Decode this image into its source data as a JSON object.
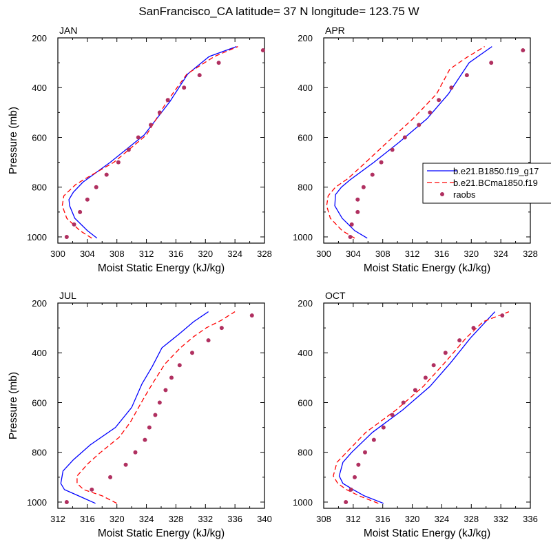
{
  "title": "SanFrancisco_CA  latitude= 37 N longitude= 123.75 W",
  "colors": {
    "model1": "#0000ff",
    "model2": "#ff0000",
    "obs": "#b03060",
    "axis": "#000000"
  },
  "legend": {
    "placement": "right edge of APR panel",
    "entries": [
      {
        "label": "b.e21.B1850.f19_g17",
        "style": "solid-line",
        "color": "#0000ff"
      },
      {
        "label": "b.e21.BCma1850.f19",
        "style": "dashed-line",
        "color": "#ff0000"
      },
      {
        "label": "raobs",
        "style": "dot",
        "color": "#b03060"
      }
    ]
  },
  "chart_data": [
    {
      "type": "line",
      "title": "JAN",
      "xlabel": "Moist Static Energy (kJ/kg)",
      "ylabel": "Pressure (mb)",
      "xlim": [
        300,
        328
      ],
      "xticks": [
        300,
        304,
        308,
        312,
        316,
        320,
        324,
        328
      ],
      "ylim": [
        1025,
        200
      ],
      "yticks": [
        200,
        400,
        600,
        800,
        1000
      ],
      "series": [
        {
          "name": "b.e21.B1850.f19_g17",
          "style": "solid",
          "points": [
            [
              305.3,
              1005
            ],
            [
              304.0,
              975
            ],
            [
              302.3,
              925
            ],
            [
              301.6,
              875
            ],
            [
              301.5,
              850
            ],
            [
              302.1,
              820
            ],
            [
              303.4,
              780
            ],
            [
              307.1,
              700
            ],
            [
              311.7,
              590
            ],
            [
              315.2,
              455
            ],
            [
              317.6,
              345
            ],
            [
              320.5,
              275
            ],
            [
              324.2,
              235
            ]
          ]
        },
        {
          "name": "b.e21.BCma1850.f19",
          "style": "dashed",
          "points": [
            [
              304.6,
              1005
            ],
            [
              303.0,
              975
            ],
            [
              301.2,
              925
            ],
            [
              300.6,
              875
            ],
            [
              300.8,
              835
            ],
            [
              302.4,
              790
            ],
            [
              303.6,
              768
            ],
            [
              307.6,
              700
            ],
            [
              312.0,
              590
            ],
            [
              314.8,
              455
            ],
            [
              317.5,
              345
            ],
            [
              321.2,
              275
            ],
            [
              324.4,
              235
            ]
          ]
        },
        {
          "name": "raobs",
          "style": "dots",
          "points": [
            [
              301.2,
              1000
            ],
            [
              302.2,
              950
            ],
            [
              303.0,
              900
            ],
            [
              304.0,
              850
            ],
            [
              305.2,
              800
            ],
            [
              306.6,
              750
            ],
            [
              308.2,
              700
            ],
            [
              309.6,
              650
            ],
            [
              310.9,
              600
            ],
            [
              312.6,
              550
            ],
            [
              313.8,
              500
            ],
            [
              314.9,
              450
            ],
            [
              317.1,
              400
            ],
            [
              319.2,
              350
            ],
            [
              321.8,
              300
            ],
            [
              327.8,
              250
            ]
          ]
        }
      ]
    },
    {
      "type": "line",
      "title": "APR",
      "xlabel": "Moist Static Energy (kJ/kg)",
      "ylabel": "",
      "xlim": [
        300,
        328
      ],
      "xticks": [
        300,
        304,
        308,
        312,
        316,
        320,
        324,
        328
      ],
      "ylim": [
        1025,
        200
      ],
      "yticks": [
        200,
        400,
        600,
        800,
        1000
      ],
      "series": [
        {
          "name": "b.e21.B1850.f19_g17",
          "style": "solid",
          "points": [
            [
              305.9,
              1005
            ],
            [
              304.2,
              975
            ],
            [
              302.5,
              925
            ],
            [
              301.5,
              875
            ],
            [
              301.6,
              830
            ],
            [
              302.4,
              800
            ],
            [
              303.6,
              770
            ],
            [
              306.8,
              700
            ],
            [
              310.2,
              620
            ],
            [
              314.0,
              525
            ],
            [
              316.9,
              425
            ],
            [
              319.7,
              300
            ],
            [
              322.8,
              235
            ]
          ]
        },
        {
          "name": "b.e21.BCma1850.f19",
          "style": "dashed",
          "points": [
            [
              304.2,
              1005
            ],
            [
              302.5,
              975
            ],
            [
              300.9,
              925
            ],
            [
              300.4,
              875
            ],
            [
              300.6,
              835
            ],
            [
              301.6,
              800
            ],
            [
              303.3,
              765
            ],
            [
              305.7,
              700
            ],
            [
              308.6,
              620
            ],
            [
              312.1,
              525
            ],
            [
              315.3,
              425
            ],
            [
              317.1,
              325
            ],
            [
              319.3,
              280
            ],
            [
              321.8,
              235
            ]
          ]
        },
        {
          "name": "raobs",
          "style": "dots",
          "points": [
            [
              303.6,
              1000
            ],
            [
              303.8,
              950
            ],
            [
              304.6,
              900
            ],
            [
              304.6,
              850
            ],
            [
              305.4,
              800
            ],
            [
              306.6,
              750
            ],
            [
              307.8,
              700
            ],
            [
              309.3,
              650
            ],
            [
              311.0,
              600
            ],
            [
              312.9,
              550
            ],
            [
              314.4,
              500
            ],
            [
              315.6,
              450
            ],
            [
              317.3,
              400
            ],
            [
              319.4,
              350
            ],
            [
              322.7,
              300
            ],
            [
              327.0,
              250
            ]
          ]
        }
      ]
    },
    {
      "type": "line",
      "title": "JUL",
      "xlabel": "Moist Static Energy (kJ/kg)",
      "ylabel": "Pressure (mb)",
      "xlim": [
        312,
        340
      ],
      "xticks": [
        312,
        316,
        320,
        324,
        328,
        332,
        336,
        340
      ],
      "ylim": [
        1025,
        200
      ],
      "yticks": [
        200,
        400,
        600,
        800,
        1000
      ],
      "series": [
        {
          "name": "b.e21.B1850.f19_g17",
          "style": "solid",
          "points": [
            [
              317.1,
              1005
            ],
            [
              314.8,
              975
            ],
            [
              312.9,
              950
            ],
            [
              312.4,
              925
            ],
            [
              312.7,
              875
            ],
            [
              314.1,
              830
            ],
            [
              316.4,
              770
            ],
            [
              319.8,
              700
            ],
            [
              322.0,
              620
            ],
            [
              323.4,
              525
            ],
            [
              324.8,
              455
            ],
            [
              326.1,
              380
            ],
            [
              328.4,
              325
            ],
            [
              330.4,
              275
            ],
            [
              332.4,
              235
            ]
          ]
        },
        {
          "name": "b.e21.BCma1850.f19",
          "style": "dashed",
          "points": [
            [
              320.0,
              1005
            ],
            [
              318.0,
              975
            ],
            [
              315.5,
              950
            ],
            [
              314.6,
              925
            ],
            [
              314.6,
              895
            ],
            [
              316.1,
              845
            ],
            [
              317.8,
              800
            ],
            [
              320.3,
              740
            ],
            [
              321.8,
              680
            ],
            [
              323.5,
              590
            ],
            [
              324.8,
              525
            ],
            [
              326.5,
              445
            ],
            [
              328.6,
              380
            ],
            [
              330.4,
              335
            ],
            [
              332.1,
              300
            ],
            [
              334.1,
              270
            ],
            [
              336.0,
              235
            ]
          ]
        },
        {
          "name": "raobs",
          "style": "dots",
          "points": [
            [
              313.2,
              1000
            ],
            [
              316.6,
              950
            ],
            [
              319.1,
              900
            ],
            [
              321.2,
              850
            ],
            [
              322.5,
              800
            ],
            [
              323.8,
              750
            ],
            [
              324.4,
              700
            ],
            [
              325.2,
              650
            ],
            [
              325.8,
              600
            ],
            [
              326.6,
              550
            ],
            [
              327.4,
              500
            ],
            [
              328.5,
              450
            ],
            [
              330.2,
              400
            ],
            [
              332.4,
              350
            ],
            [
              334.2,
              300
            ],
            [
              338.3,
              250
            ]
          ]
        }
      ]
    },
    {
      "type": "line",
      "title": "OCT",
      "xlabel": "Moist Static Energy (kJ/kg)",
      "ylabel": "",
      "xlim": [
        308,
        336
      ],
      "xticks": [
        308,
        312,
        316,
        320,
        324,
        328,
        332,
        336
      ],
      "ylim": [
        1025,
        200
      ],
      "yticks": [
        200,
        400,
        600,
        800,
        1000
      ],
      "series": [
        {
          "name": "b.e21.B1850.f19_g17",
          "style": "solid",
          "points": [
            [
              316.1,
              1005
            ],
            [
              313.5,
              975
            ],
            [
              312.0,
              950
            ],
            [
              310.6,
              925
            ],
            [
              310.1,
              895
            ],
            [
              310.6,
              840
            ],
            [
              311.8,
              800
            ],
            [
              314.6,
              720
            ],
            [
              318.7,
              630
            ],
            [
              322.4,
              535
            ],
            [
              325.2,
              440
            ],
            [
              327.9,
              340
            ],
            [
              331.2,
              235
            ]
          ]
        },
        {
          "name": "b.e21.BCma1850.f19",
          "style": "dashed",
          "points": [
            [
              315.4,
              1005
            ],
            [
              312.8,
              975
            ],
            [
              311.1,
              950
            ],
            [
              309.9,
              925
            ],
            [
              309.3,
              895
            ],
            [
              309.8,
              840
            ],
            [
              311.1,
              800
            ],
            [
              313.7,
              720
            ],
            [
              317.8,
              630
            ],
            [
              321.5,
              535
            ],
            [
              324.4,
              440
            ],
            [
              327.3,
              340
            ],
            [
              329.6,
              275
            ],
            [
              333.1,
              235
            ]
          ]
        },
        {
          "name": "raobs",
          "style": "dots",
          "points": [
            [
              311.0,
              1000
            ],
            [
              311.7,
              950
            ],
            [
              312.2,
              900
            ],
            [
              312.7,
              850
            ],
            [
              313.6,
              800
            ],
            [
              314.8,
              750
            ],
            [
              316.1,
              700
            ],
            [
              317.3,
              650
            ],
            [
              318.8,
              600
            ],
            [
              320.4,
              550
            ],
            [
              321.8,
              500
            ],
            [
              322.9,
              450
            ],
            [
              324.5,
              400
            ],
            [
              326.4,
              350
            ],
            [
              328.3,
              300
            ],
            [
              332.2,
              250
            ]
          ]
        }
      ]
    }
  ]
}
